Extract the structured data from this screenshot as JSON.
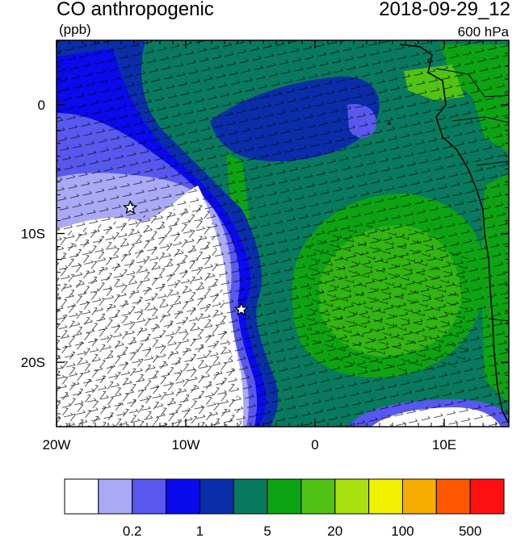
{
  "header": {
    "title_left": "CO anthropogenic",
    "units": "(ppb)",
    "title_right": "2018-09-29_12",
    "level": "600 hPa"
  },
  "map": {
    "lon_range": [
      -20,
      15
    ],
    "lat_range": [
      -25,
      5
    ],
    "x_ticks": [
      {
        "value": -20,
        "label": "20W"
      },
      {
        "value": -10,
        "label": "10W"
      },
      {
        "value": 0,
        "label": "0"
      },
      {
        "value": 10,
        "label": "10E"
      }
    ],
    "y_ticks": [
      {
        "value": 0,
        "label": "0"
      },
      {
        "value": -10,
        "label": "10S"
      },
      {
        "value": -20,
        "label": "20S"
      }
    ],
    "markers": [
      {
        "name": "star",
        "lon": -14.3,
        "lat": -8.0
      },
      {
        "name": "star",
        "lon": -5.7,
        "lat": -15.9
      }
    ]
  },
  "colorbar": {
    "colors": [
      "#ffffff",
      "#a9a9f5",
      "#5858ee",
      "#0a0aec",
      "#0a2eaa",
      "#087a5e",
      "#0ca413",
      "#50c314",
      "#a8e010",
      "#f0f000",
      "#f7ad00",
      "#ff5800",
      "#ff1010"
    ],
    "labels": [
      {
        "text": "0.2",
        "boundary": 2
      },
      {
        "text": "1",
        "boundary": 4
      },
      {
        "text": "5",
        "boundary": 6
      },
      {
        "text": "20",
        "boundary": 8
      },
      {
        "text": "100",
        "boundary": 10
      },
      {
        "text": "500",
        "boundary": 12
      }
    ]
  }
}
